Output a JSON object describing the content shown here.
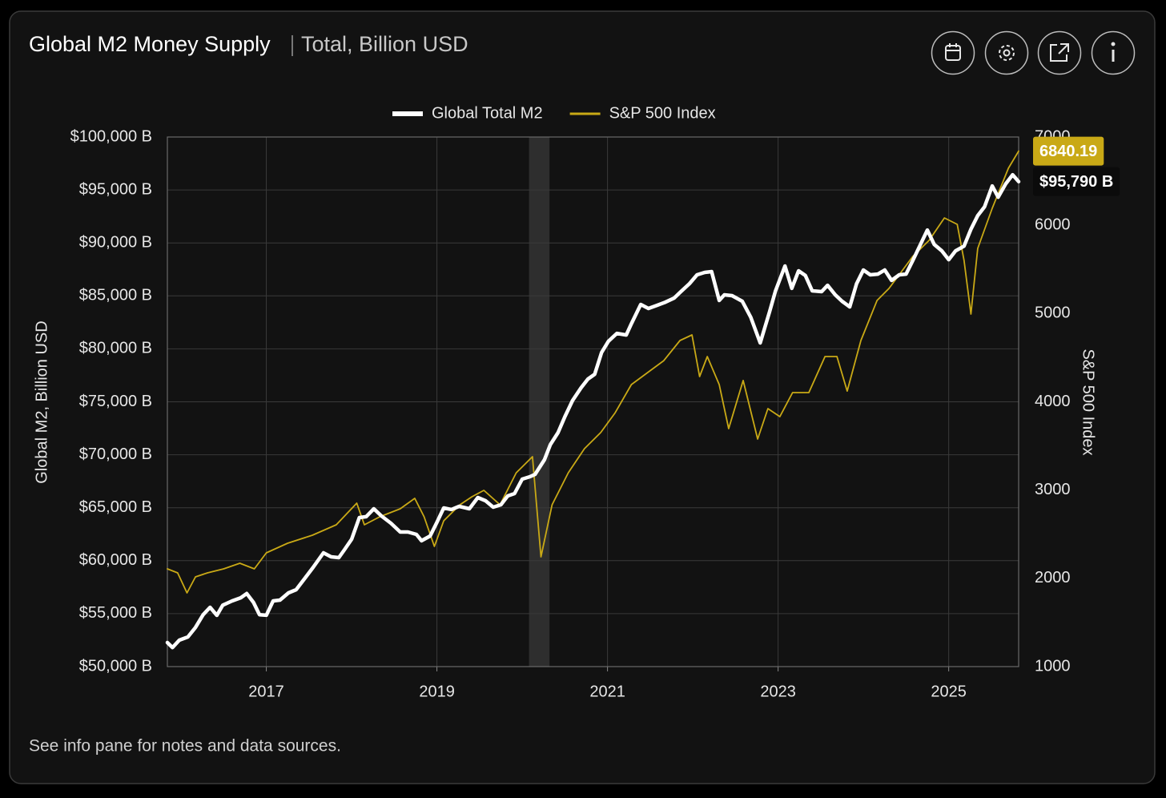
{
  "header": {
    "title": "Global M2 Money Supply",
    "subtitle": "Total, Billion USD"
  },
  "footer": "See info pane for notes and data sources.",
  "chart_data": {
    "type": "line",
    "y_label": "Global M2, Billion USD",
    "y2_label": "S&P 500 Index",
    "xlim": [
      2015.84,
      2025.82
    ],
    "xticks": [
      2017,
      2019,
      2021,
      2023,
      2025
    ],
    "ylim": [
      50000,
      100000
    ],
    "yticks": [
      {
        "value": 50000,
        "label": "$50,000 B"
      },
      {
        "value": 55000,
        "label": "$55,000 B"
      },
      {
        "value": 60000,
        "label": "$60,000 B"
      },
      {
        "value": 65000,
        "label": "$65,000 B"
      },
      {
        "value": 70000,
        "label": "$70,000 B"
      },
      {
        "value": 75000,
        "label": "$75,000 B"
      },
      {
        "value": 80000,
        "label": "$80,000 B"
      },
      {
        "value": 85000,
        "label": "$85,000 B"
      },
      {
        "value": 90000,
        "label": "$90,000 B"
      },
      {
        "value": 95000,
        "label": "$95,000 B"
      },
      {
        "value": 100000,
        "label": "$100,000 B"
      }
    ],
    "y2lim": [
      1000,
      7000
    ],
    "y2ticks": [
      1000,
      2000,
      3000,
      4000,
      5000,
      6000,
      7000
    ],
    "grid": true,
    "legend": "top",
    "last_value_badge": true,
    "shaded_xranges": [
      [
        2020.08,
        2020.32
      ]
    ],
    "series": [
      {
        "name": "Global Total M2",
        "color": "#ffffff",
        "axis": "y",
        "x": [
          2015.84,
          2015.9,
          2015.98,
          2016.08,
          2016.17,
          2016.26,
          2016.34,
          2016.42,
          2016.49,
          2016.6,
          2016.7,
          2016.77,
          2016.85,
          2016.92,
          2017.0,
          2017.08,
          2017.16,
          2017.26,
          2017.35,
          2017.45,
          2017.55,
          2017.67,
          2017.76,
          2017.85,
          2017.91,
          2018.0,
          2018.09,
          2018.17,
          2018.26,
          2018.35,
          2018.46,
          2018.57,
          2018.66,
          2018.76,
          2018.82,
          2018.92,
          2019.0,
          2019.08,
          2019.17,
          2019.26,
          2019.38,
          2019.48,
          2019.57,
          2019.66,
          2019.75,
          2019.83,
          2019.91,
          2020.0,
          2020.09,
          2020.15,
          2020.26,
          2020.33,
          2020.42,
          2020.5,
          2020.59,
          2020.69,
          2020.77,
          2020.85,
          2020.93,
          2021.01,
          2021.11,
          2021.22,
          2021.28,
          2021.39,
          2021.48,
          2021.58,
          2021.68,
          2021.78,
          2021.86,
          2021.96,
          2022.05,
          2022.14,
          2022.22,
          2022.31,
          2022.37,
          2022.46,
          2022.58,
          2022.68,
          2022.79,
          2022.9,
          2022.97,
          2023.08,
          2023.16,
          2023.24,
          2023.32,
          2023.4,
          2023.51,
          2023.58,
          2023.67,
          2023.75,
          2023.84,
          2023.92,
          2024.0,
          2024.08,
          2024.17,
          2024.25,
          2024.33,
          2024.42,
          2024.5,
          2024.58,
          2024.66,
          2024.75,
          2024.83,
          2024.92,
          2025.0,
          2025.08,
          2025.18,
          2025.26,
          2025.34,
          2025.42,
          2025.51,
          2025.58,
          2025.67,
          2025.75,
          2025.82
        ],
        "values": [
          52270,
          51800,
          52500,
          52800,
          53700,
          54900,
          55600,
          54840,
          55800,
          56200,
          56500,
          56900,
          56050,
          54900,
          54850,
          56200,
          56280,
          56960,
          57260,
          58320,
          59380,
          60740,
          60360,
          60290,
          60970,
          62030,
          64070,
          64150,
          64900,
          64220,
          63540,
          62710,
          62710,
          62480,
          61880,
          62330,
          63620,
          64980,
          64830,
          65130,
          64900,
          65960,
          65660,
          65050,
          65280,
          66110,
          66340,
          67700,
          67930,
          68150,
          69520,
          70950,
          72090,
          73600,
          75110,
          76320,
          77150,
          77600,
          79650,
          80710,
          81460,
          81310,
          82370,
          84190,
          83810,
          84110,
          84410,
          84790,
          85400,
          86150,
          86990,
          87220,
          87290,
          84570,
          85100,
          85020,
          84490,
          82980,
          80560,
          83510,
          85480,
          87820,
          85710,
          87370,
          86920,
          85480,
          85400,
          86000,
          85100,
          84490,
          83960,
          86150,
          87440,
          86990,
          87060,
          87440,
          86460,
          86990,
          87060,
          88350,
          89700,
          91220,
          89860,
          89250,
          88420,
          89250,
          89700,
          91290,
          92580,
          93410,
          95380,
          94320,
          95600,
          96440,
          95790
        ],
        "value_labels": [
          null,
          null,
          null,
          null,
          null,
          null,
          null,
          null,
          null,
          null,
          null,
          null,
          null,
          null,
          null,
          null,
          null,
          null,
          null,
          null,
          null,
          null,
          null,
          null,
          null,
          null,
          null,
          null,
          null,
          null,
          null,
          null,
          null,
          null,
          null,
          null,
          null,
          null,
          null,
          null,
          null,
          null,
          null,
          null,
          null,
          null,
          null,
          null,
          null,
          null,
          null,
          null,
          null,
          null,
          null,
          null,
          null,
          null,
          null,
          null,
          null,
          null,
          null,
          null,
          null,
          null,
          null,
          null,
          null,
          null,
          null,
          null,
          null,
          null,
          null,
          null,
          null,
          null,
          null,
          null,
          null,
          null,
          null,
          null,
          null,
          null,
          null,
          null,
          null,
          null,
          null,
          null,
          null,
          null,
          null,
          null,
          null,
          null,
          null,
          null,
          null,
          null,
          null,
          null,
          null,
          null,
          null,
          null,
          null,
          null,
          null,
          null,
          null,
          null,
          "$95,790 B"
        ]
      },
      {
        "name": "S&P 500 Index",
        "color": "#c9a916",
        "axis": "y2",
        "x": [
          2015.84,
          2015.96,
          2016.07,
          2016.17,
          2016.31,
          2016.5,
          2016.69,
          2016.86,
          2017.0,
          2017.25,
          2017.54,
          2017.82,
          2018.06,
          2018.15,
          2018.33,
          2018.57,
          2018.74,
          2018.85,
          2018.97,
          2019.08,
          2019.27,
          2019.41,
          2019.55,
          2019.74,
          2019.93,
          2020.12,
          2020.22,
          2020.35,
          2020.54,
          2020.73,
          2020.92,
          2021.09,
          2021.28,
          2021.47,
          2021.66,
          2021.85,
          2021.99,
          2022.08,
          2022.17,
          2022.31,
          2022.42,
          2022.59,
          2022.76,
          2022.88,
          2023.02,
          2023.17,
          2023.36,
          2023.55,
          2023.69,
          2023.81,
          2023.97,
          2024.16,
          2024.3,
          2024.44,
          2024.58,
          2024.77,
          2024.95,
          2025.1,
          2025.18,
          2025.26,
          2025.34,
          2025.51,
          2025.7,
          2025.82
        ],
        "values": [
          2107,
          2062,
          1835,
          2017,
          2062,
          2107,
          2171,
          2107,
          2289,
          2398,
          2489,
          2607,
          2852,
          2607,
          2697,
          2788,
          2906,
          2697,
          2362,
          2652,
          2834,
          2924,
          2997,
          2834,
          3196,
          3378,
          2244,
          2834,
          3196,
          3469,
          3651,
          3877,
          4195,
          4331,
          4467,
          4694,
          4758,
          4286,
          4513,
          4195,
          3696,
          4241,
          3578,
          3923,
          3832,
          4104,
          4104,
          4513,
          4513,
          4122,
          4694,
          5148,
          5284,
          5466,
          5648,
          5829,
          6083,
          6011,
          5603,
          4994,
          5738,
          6192,
          6646,
          6840.19
        ]
      }
    ]
  }
}
